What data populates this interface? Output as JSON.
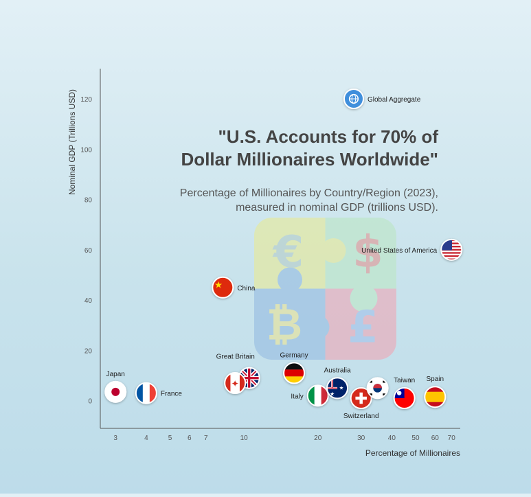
{
  "chart_data": {
    "type": "scatter",
    "title": "\"U.S. Accounts for 70% of\nDollar Millionaires Worldwide\"",
    "subtitle": "Percentage of Millionaires by Country/Region (2023),\nmeasured in nominal GDP (trillions USD).",
    "xlabel": "Percentage of Millionaires",
    "ylabel": "Nominal GDP (Trillions USD)",
    "x_scale": "log",
    "xlim": [
      2.6,
      76
    ],
    "ylim": [
      -11,
      132
    ],
    "x_ticks": [
      3,
      4,
      5,
      6,
      7,
      10,
      20,
      30,
      40,
      50,
      60,
      70
    ],
    "y_ticks": [
      0,
      20,
      40,
      60,
      80,
      100,
      120
    ],
    "grid": false,
    "points": [
      {
        "label": "Global Aggregate",
        "x": 28,
        "y": 120,
        "icon": "globe-icon",
        "label_pos": "right"
      },
      {
        "label": "United States of America",
        "x": 70,
        "y": 60,
        "icon": "flag-usa-icon",
        "label_pos": "left"
      },
      {
        "label": "China",
        "x": 8.2,
        "y": 45,
        "icon": "flag-china-icon",
        "label_pos": "right"
      },
      {
        "label": "Japan",
        "x": 3.0,
        "y": 3.5,
        "icon": "flag-japan-icon",
        "label_pos": "top"
      },
      {
        "label": "France",
        "x": 4.0,
        "y": 3,
        "icon": "flag-france-icon",
        "label_pos": "right"
      },
      {
        "label": "Great Britain",
        "x": 10.5,
        "y": 9,
        "icon": "flag-uk-icon",
        "label_pos": "topleft"
      },
      {
        "label": "",
        "x": 9.2,
        "y": 7,
        "icon": "flag-canada-icon",
        "label_pos": "none"
      },
      {
        "label": "Germany",
        "x": 16,
        "y": 11,
        "icon": "flag-germany-icon",
        "label_pos": "top"
      },
      {
        "label": "Italy",
        "x": 20,
        "y": 2,
        "icon": "flag-italy-icon",
        "label_pos": "left"
      },
      {
        "label": "Australia",
        "x": 24,
        "y": 5,
        "icon": "flag-australia-icon",
        "label_pos": "top"
      },
      {
        "label": "Switzerland",
        "x": 30,
        "y": 1,
        "icon": "flag-switzerland-icon",
        "label_pos": "bottom"
      },
      {
        "label": "",
        "x": 35,
        "y": 5,
        "icon": "flag-korea-icon",
        "label_pos": "none"
      },
      {
        "label": "Taiwan",
        "x": 45,
        "y": 1,
        "icon": "flag-taiwan-icon",
        "label_pos": "top"
      },
      {
        "label": "Spain",
        "x": 60,
        "y": 1.5,
        "icon": "flag-spain-icon",
        "label_pos": "top"
      }
    ],
    "background_graphic": {
      "icon": "currency-puzzle-icon",
      "symbols": [
        "€",
        "$",
        "₿",
        "£"
      ],
      "colors": [
        "#e3e9a6",
        "#bfe6cc",
        "#9fc3e3",
        "#e7b2c0"
      ]
    }
  }
}
